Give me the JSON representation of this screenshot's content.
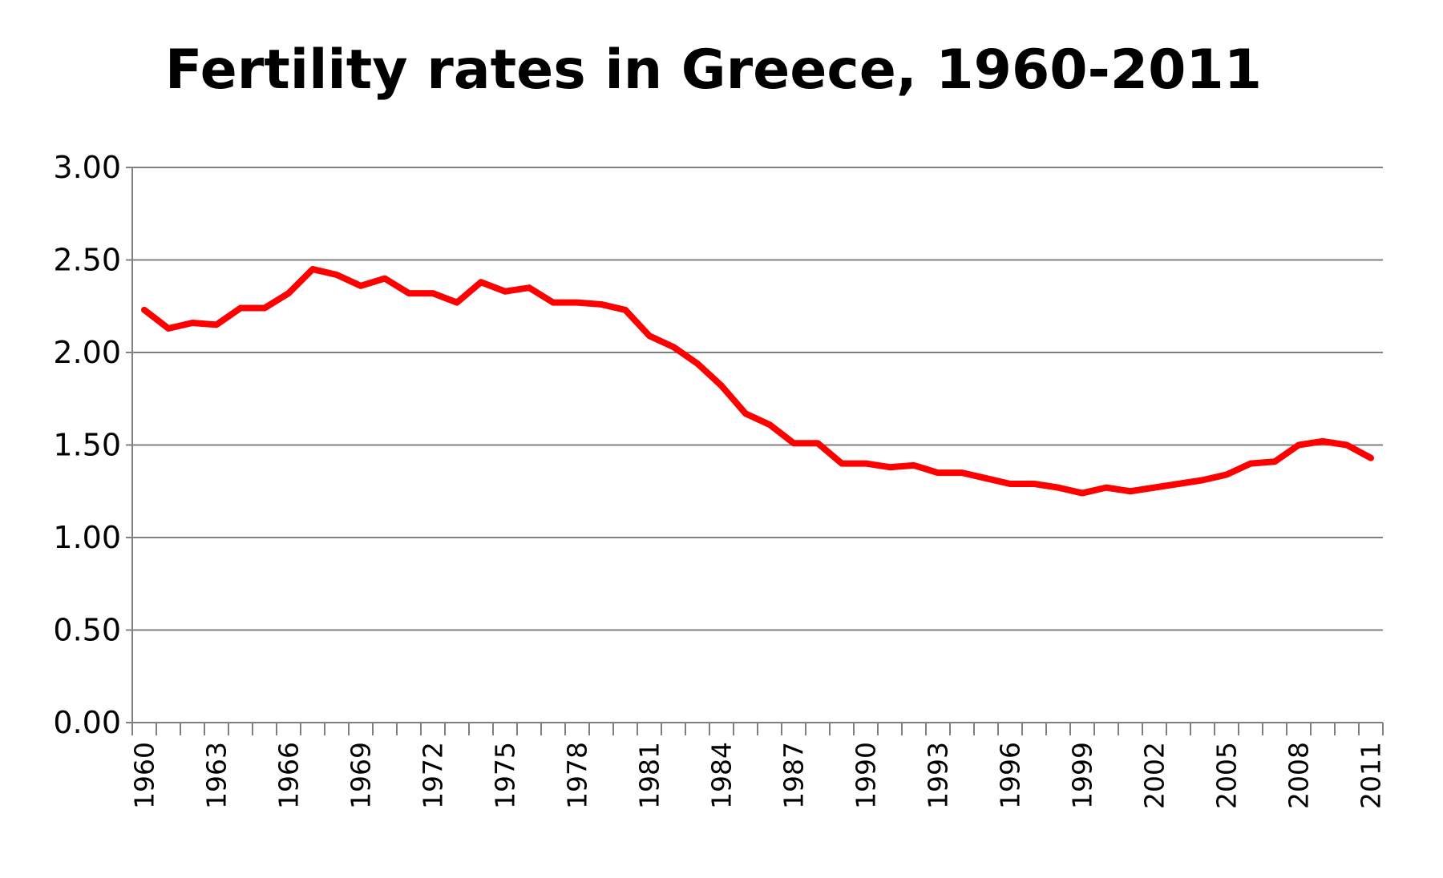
{
  "chart_data": {
    "type": "line",
    "title": "Fertility rates in Greece, 1960-2011",
    "xlabel": "",
    "ylabel": "",
    "ylim": [
      0,
      3
    ],
    "yticks": [
      "0.00",
      "0.50",
      "1.00",
      "1.50",
      "2.00",
      "2.50",
      "3.00"
    ],
    "x": [
      1960,
      1961,
      1962,
      1963,
      1964,
      1965,
      1966,
      1967,
      1968,
      1969,
      1970,
      1971,
      1972,
      1973,
      1974,
      1975,
      1976,
      1977,
      1978,
      1979,
      1980,
      1981,
      1982,
      1983,
      1984,
      1985,
      1986,
      1987,
      1988,
      1989,
      1990,
      1991,
      1992,
      1993,
      1994,
      1995,
      1996,
      1997,
      1998,
      1999,
      2000,
      2001,
      2002,
      2003,
      2004,
      2005,
      2006,
      2007,
      2008,
      2009,
      2010,
      2011
    ],
    "xtick_labels": [
      "1960",
      "1963",
      "1966",
      "1969",
      "1972",
      "1975",
      "1978",
      "1981",
      "1984",
      "1987",
      "1990",
      "1993",
      "1996",
      "1999",
      "2002",
      "2005",
      "2008",
      "2011"
    ],
    "series": [
      {
        "values": [
          2.23,
          2.13,
          2.16,
          2.15,
          2.24,
          2.24,
          2.32,
          2.45,
          2.42,
          2.36,
          2.4,
          2.32,
          2.32,
          2.27,
          2.38,
          2.33,
          2.35,
          2.27,
          2.27,
          2.26,
          2.23,
          2.09,
          2.03,
          1.94,
          1.82,
          1.67,
          1.61,
          1.51,
          1.51,
          1.4,
          1.4,
          1.38,
          1.39,
          1.35,
          1.35,
          1.32,
          1.29,
          1.29,
          1.27,
          1.24,
          1.27,
          1.25,
          1.27,
          1.29,
          1.31,
          1.34,
          1.4,
          1.41,
          1.5,
          1.52,
          1.5,
          1.43
        ],
        "color": "#ff0000"
      }
    ],
    "grid": true,
    "legend": "none"
  }
}
